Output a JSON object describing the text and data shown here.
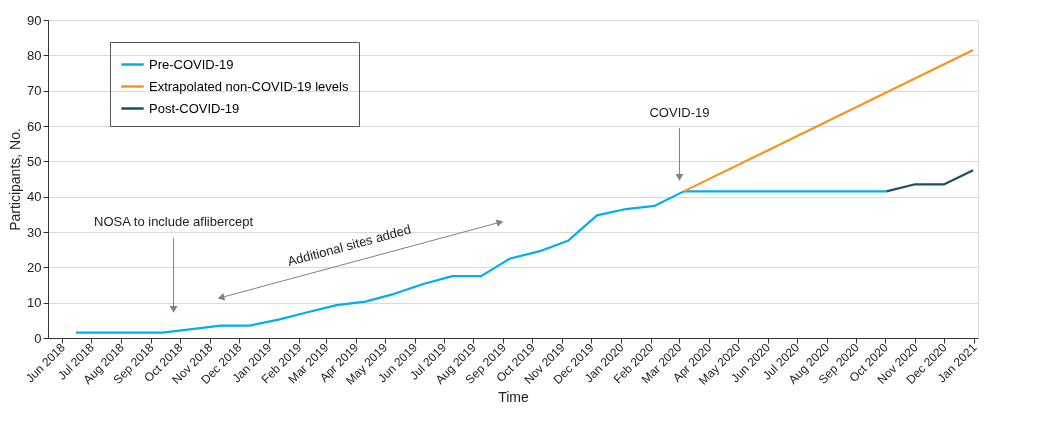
{
  "chart_data": {
    "type": "line",
    "xlabel": "Time",
    "ylabel": "Participants, No.",
    "series": [
      {
        "name": "Pre-COVID-19",
        "color": "#00aeef",
        "x": [
          "2018-06-15",
          "2018-07-15",
          "2018-08-14",
          "2018-09-13",
          "2018-10-13",
          "2018-11-12",
          "2018-12-12",
          "2019-01-11",
          "2019-02-10",
          "2019-03-12",
          "2019-04-11",
          "2019-05-11",
          "2019-06-10",
          "2019-07-10",
          "2019-08-09",
          "2019-09-08",
          "2019-10-08",
          "2019-11-07",
          "2019-12-07",
          "2020-01-06",
          "2020-02-05",
          "2020-03-06",
          "2020-04-05",
          "2020-05-05",
          "2020-06-04",
          "2020-07-04",
          "2020-08-03",
          "2020-09-02",
          "2020-10-02"
        ],
        "values": [
          1.5,
          1.5,
          1.5,
          1.5,
          2.5,
          3.5,
          3.5,
          5.2,
          7.3,
          9.3,
          10.3,
          12.5,
          15.3,
          17.5,
          17.5,
          22.5,
          24.5,
          27.5,
          34.7,
          36.5,
          37.4,
          41.5,
          41.5,
          41.5,
          41.5,
          41.5,
          41.5,
          41.5,
          41.5
        ]
      },
      {
        "name": "Extrapolated non-COVID-19 levels",
        "color": "#f7941d",
        "x": [
          "2020-03-06",
          "2020-12-31"
        ],
        "values": [
          41.5,
          81.5
        ]
      },
      {
        "name": "Post-COVID-19",
        "color": "#1f4e5f",
        "x": [
          "2020-10-02",
          "2020-11-01",
          "2020-12-01",
          "2020-12-31"
        ],
        "values": [
          41.5,
          43.5,
          43.5,
          47.5
        ]
      }
    ],
    "annotations": [
      "NOSA to include aflibercept",
      "Additional sites added",
      "COVID-19"
    ],
    "xlim": [
      "2018-05-17",
      "2021-01-05"
    ],
    "xticks": [
      {
        "value": "2018-06",
        "label": "Jun 2018"
      },
      {
        "value": "2018-07",
        "label": "Jul 2018"
      },
      {
        "value": "2018-08",
        "label": "Aug 2018"
      },
      {
        "value": "2018-09",
        "label": "Sep 2018"
      },
      {
        "value": "2018-10",
        "label": "Oct 2018"
      },
      {
        "value": "2018-11",
        "label": "Nov 2018"
      },
      {
        "value": "2018-12",
        "label": "Dec 2018"
      },
      {
        "value": "2019-01",
        "label": "Jan 2019"
      },
      {
        "value": "2019-02",
        "label": "Feb 2019"
      },
      {
        "value": "2019-03",
        "label": "Mar 2019"
      },
      {
        "value": "2019-04",
        "label": "Apr 2019"
      },
      {
        "value": "2019-05",
        "label": "May 2019"
      },
      {
        "value": "2019-06",
        "label": "Jun 2019"
      },
      {
        "value": "2019-07",
        "label": "Jul 2019"
      },
      {
        "value": "2019-08",
        "label": "Aug 2019"
      },
      {
        "value": "2019-09",
        "label": "Sep 2019"
      },
      {
        "value": "2019-10",
        "label": "Oct 2019"
      },
      {
        "value": "2019-11",
        "label": "Nov 2019"
      },
      {
        "value": "2019-12",
        "label": "Dec 2019"
      },
      {
        "value": "2020-01",
        "label": "Jan 2020"
      },
      {
        "value": "2020-02",
        "label": "Feb 2020"
      },
      {
        "value": "2020-03",
        "label": "Mar 2020"
      },
      {
        "value": "2020-04",
        "label": "Apr 2020"
      },
      {
        "value": "2020-05",
        "label": "May 2020"
      },
      {
        "value": "2020-06",
        "label": "Jun 2020"
      },
      {
        "value": "2020-07",
        "label": "Jul 2020"
      },
      {
        "value": "2020-08",
        "label": "Aug 2020"
      },
      {
        "value": "2020-09",
        "label": "Sep 2020"
      },
      {
        "value": "2020-10",
        "label": "Oct 2020"
      },
      {
        "value": "2020-11",
        "label": "Nov 2020"
      },
      {
        "value": "2020-12",
        "label": "Dec 2020"
      },
      {
        "value": "2021-01",
        "label": "Jan 2021"
      }
    ],
    "ylim": [
      0,
      90
    ],
    "yticks": [
      0,
      10,
      20,
      30,
      40,
      50,
      60,
      70,
      80,
      90
    ],
    "grid": "y",
    "legend": "top left",
    "marker": "none",
    "line_style": "solid"
  }
}
